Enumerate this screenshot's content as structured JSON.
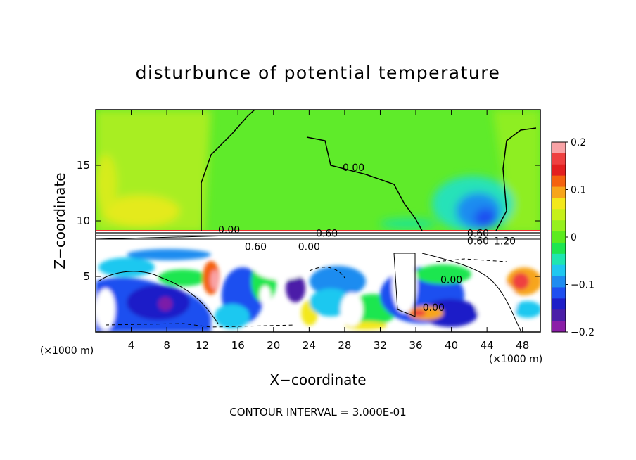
{
  "chart_data": {
    "type": "heatmap",
    "title": "disturbunce of potential temperature",
    "xlabel": "X−coordinate",
    "ylabel": "Z−coordinate",
    "x_unit": "(×1000 m)",
    "z_unit": "(×1000 m)",
    "xlim": [
      0,
      50
    ],
    "ylim": [
      0,
      20
    ],
    "xticks": [
      "4",
      "8",
      "12",
      "16",
      "20",
      "24",
      "28",
      "32",
      "36",
      "40",
      "44",
      "48"
    ],
    "xtick_values": [
      4,
      8,
      12,
      16,
      20,
      24,
      28,
      32,
      36,
      40,
      44,
      48
    ],
    "yticks": [
      "5",
      "10",
      "15"
    ],
    "ytick_values": [
      5,
      10,
      15
    ],
    "colorbar": {
      "range": [
        -0.2,
        0.2
      ],
      "tick_labels": [
        "0.2",
        "0.1",
        "0",
        "−0.1",
        "−0.2"
      ],
      "tick_values": [
        0.2,
        0.1,
        0,
        -0.1,
        -0.2
      ],
      "colors": [
        "#f9a3a6",
        "#ef4040",
        "#e31f1f",
        "#f4610e",
        "#f7a51a",
        "#f3e81b",
        "#c6f01a",
        "#96f01e",
        "#5ceb1e",
        "#1ee650",
        "#1ee6b0",
        "#1ec8f0",
        "#1e8cf0",
        "#1e4ff0",
        "#1e1ec8",
        "#4b1ea8",
        "#8b1ea8"
      ]
    },
    "contour_interval_label": "CONTOUR INTERVAL = 3.000E-01",
    "contour_labels": [
      {
        "text": "0.00",
        "x": 29,
        "z": 14.8
      },
      {
        "text": "0.00",
        "x": 15,
        "z": 9.2
      },
      {
        "text": "0.60",
        "x": 26,
        "z": 8.9
      },
      {
        "text": "0.60",
        "x": 18,
        "z": 7.7
      },
      {
        "text": "0.00",
        "x": 24,
        "z": 7.7
      },
      {
        "text": "0.60",
        "x": 43,
        "z": 8.9
      },
      {
        "text": "0.60",
        "x": 43,
        "z": 8.2
      },
      {
        "text": "1.20",
        "x": 46,
        "z": 8.2
      },
      {
        "text": "0.00",
        "x": 40,
        "z": 4.7
      },
      {
        "text": "0.00",
        "x": 38,
        "z": 2.2
      }
    ]
  }
}
